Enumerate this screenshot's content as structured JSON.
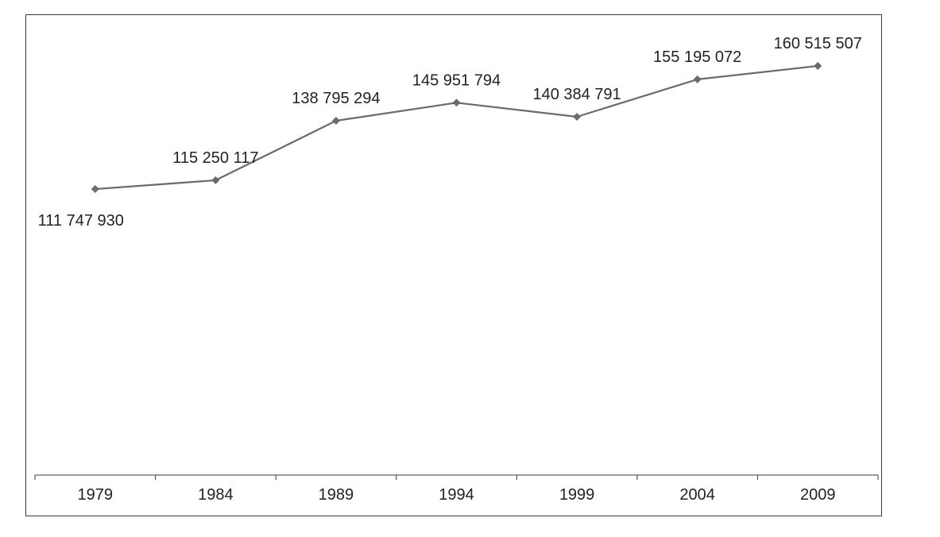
{
  "chart_data": {
    "type": "line",
    "title": "",
    "xlabel": "",
    "ylabel": "",
    "categories": [
      "1979",
      "1984",
      "1989",
      "1994",
      "1999",
      "2004",
      "2009"
    ],
    "series": [
      {
        "values": [
          111747930,
          115250117,
          138795294,
          145951794,
          140384791,
          155195072,
          160515507
        ],
        "data_labels": [
          "111 747 930",
          "115 250 117",
          "138 795 294",
          "145 951 794",
          "140 384 791",
          "155 195 072",
          "160 515 507"
        ],
        "color": "#6b6b6b",
        "marker": "diamond"
      }
    ],
    "y_axis_visible": false,
    "grid": false,
    "legend": "none",
    "border_color": "#3a3a3a"
  }
}
